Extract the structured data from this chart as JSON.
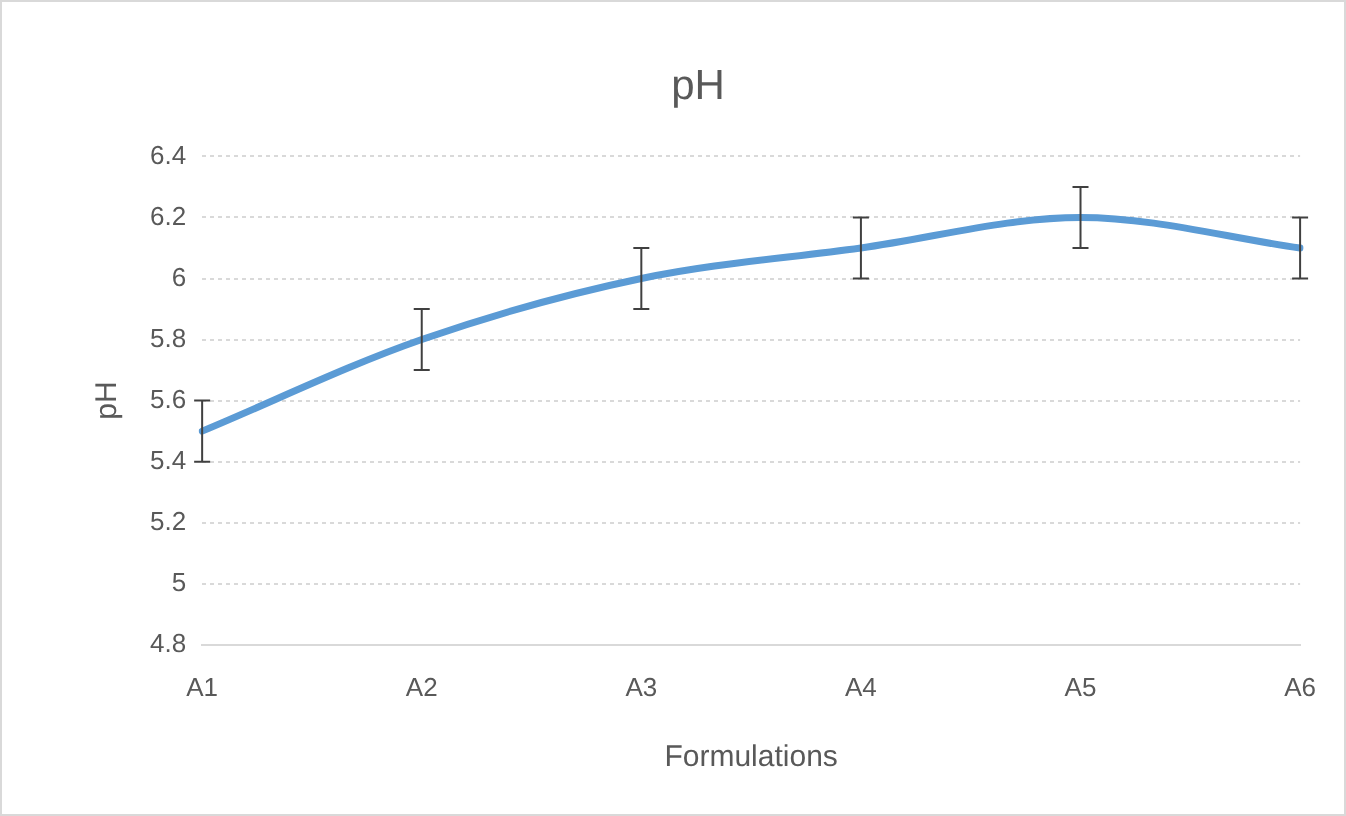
{
  "chart_data": {
    "type": "line",
    "title": "pH",
    "xlabel": "Formulations",
    "ylabel": "pH",
    "categories": [
      "A1",
      "A2",
      "A3",
      "A4",
      "A5",
      "A6"
    ],
    "series": [
      {
        "color": "#5b9bd5",
        "values": [
          5.5,
          5.8,
          6.0,
          6.1,
          6.2,
          6.1
        ],
        "errors": [
          0.1,
          0.1,
          0.1,
          0.1,
          0.1,
          0.1
        ]
      }
    ],
    "ylim": [
      4.8,
      6.4
    ],
    "yticks": [
      4.8,
      5,
      5.2,
      5.4,
      5.6,
      5.8,
      6,
      6.2,
      6.4
    ],
    "grid": "y",
    "legend": false,
    "marker": "none",
    "line_style": "solid"
  }
}
